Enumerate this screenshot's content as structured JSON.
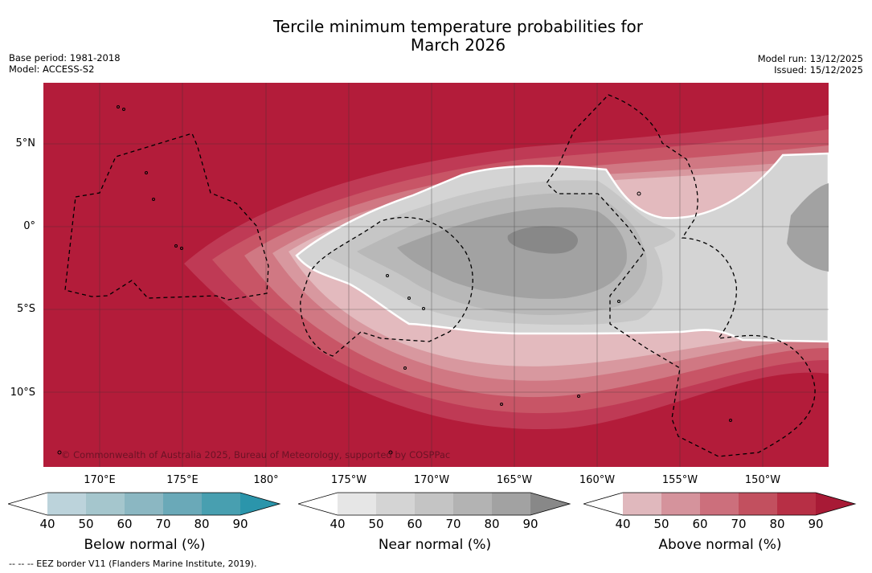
{
  "title": {
    "line1": "Tercile minimum temperature probabilities for",
    "line2": "March 2026"
  },
  "meta_left": {
    "base_period": "Base period: 1981-2018",
    "model": "Model: ACCESS-S2"
  },
  "meta_right": {
    "model_run": "Model run: 13/12/2025",
    "issued": "Issued: 15/12/2025"
  },
  "map": {
    "copyright": "© Commonwealth of Australia 2025, Bureau of Meteorology, supported by COSPPac",
    "lat_labels": [
      "5°N",
      "0°",
      "5°S",
      "10°S"
    ],
    "lon_labels": [
      "170°E",
      "175°E",
      "180°",
      "175°W",
      "170°W",
      "165°W",
      "160°W",
      "155°W",
      "150°W"
    ]
  },
  "colorbars": [
    {
      "title": "Below normal (%)",
      "ticks": [
        "40",
        "50",
        "60",
        "70",
        "80",
        "90"
      ],
      "colors": [
        "#ffffff",
        "#bcd3db",
        "#a5c6cd",
        "#8bb7c2",
        "#6aa9b8",
        "#489fb0",
        "#2b95ab"
      ]
    },
    {
      "title": "Near normal (%)",
      "ticks": [
        "40",
        "50",
        "60",
        "70",
        "80",
        "90"
      ],
      "colors": [
        "#ffffff",
        "#e6e6e6",
        "#d4d4d4",
        "#c4c4c4",
        "#b3b3b3",
        "#a2a2a2",
        "#888888"
      ]
    },
    {
      "title": "Above normal (%)",
      "ticks": [
        "40",
        "50",
        "60",
        "70",
        "80",
        "90"
      ],
      "colors": [
        "#ffffff",
        "#e0b8bd",
        "#d5939c",
        "#cc6f7c",
        "#c2505f",
        "#b72f45",
        "#a81a36"
      ]
    }
  ],
  "footer": "--  --  -- EEZ border V11 (Flanders Marine Institute, 2019)."
}
